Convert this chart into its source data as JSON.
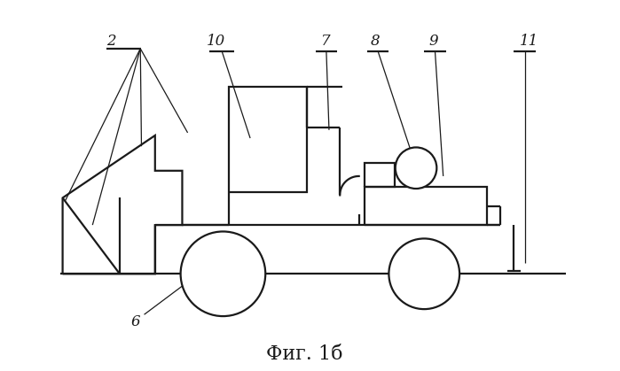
{
  "title": "Фиг. 1б",
  "title_fontsize": 16,
  "background_color": "#ffffff",
  "line_color": "#1a1a1a",
  "line_width": 1.6,
  "thin_lw": 0.9
}
